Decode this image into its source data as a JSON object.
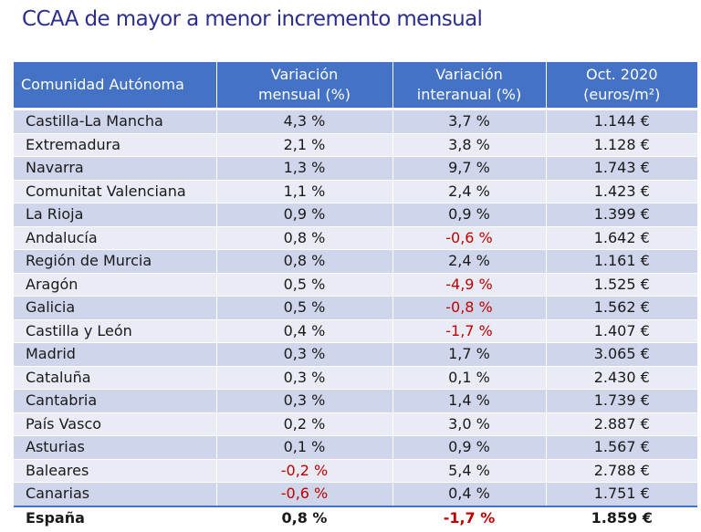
{
  "title": "CCAA de mayor a menor incremento mensual",
  "chart_data": {
    "type": "table",
    "columns": [
      [
        "Comunidad Autónoma"
      ],
      [
        "Variación",
        "mensual (%)"
      ],
      [
        "Variación",
        "interanual (%)"
      ],
      [
        "Oct. 2020",
        "(euros/m²)"
      ]
    ],
    "rows": [
      [
        "Castilla-La Mancha",
        "4,3 %",
        "3,7 %",
        "1.144 €"
      ],
      [
        "Extremadura",
        "2,1 %",
        "3,8 %",
        "1.128 €"
      ],
      [
        "Navarra",
        "1,3 %",
        "9,7 %",
        "1.743 €"
      ],
      [
        "Comunitat Valenciana",
        "1,1 %",
        "2,4 %",
        "1.423 €"
      ],
      [
        "La Rioja",
        "0,9 %",
        "0,9 %",
        "1.399 €"
      ],
      [
        "Andalucía",
        "0,8 %",
        "-0,6 %",
        "1.642 €"
      ],
      [
        "Región de Murcia",
        "0,8 %",
        "2,4 %",
        "1.161 €"
      ],
      [
        "Aragón",
        "0,5 %",
        "-4,9 %",
        "1.525 €"
      ],
      [
        "Galicia",
        "0,5 %",
        "-0,8 %",
        "1.562 €"
      ],
      [
        "Castilla y León",
        "0,4 %",
        "-1,7 %",
        "1.407 €"
      ],
      [
        "Madrid",
        "0,3 %",
        "1,7 %",
        "3.065 €"
      ],
      [
        "Cataluña",
        "0,3 %",
        "0,1 %",
        "2.430 €"
      ],
      [
        "Cantabria",
        "0,3 %",
        "1,4 %",
        "1.739 €"
      ],
      [
        "País Vasco",
        "0,2 %",
        "3,0 %",
        "2.887 €"
      ],
      [
        "Asturias",
        "0,1 %",
        "0,9 %",
        "1.567 €"
      ],
      [
        "Baleares",
        "-0,2 %",
        "5,4 %",
        "2.788 €"
      ],
      [
        "Canarias",
        "-0,6 %",
        "0,4 %",
        "1.751 €"
      ]
    ],
    "total": [
      "España",
      "0,8 %",
      "-1,7 %",
      "1.859 €"
    ],
    "colors": {
      "header": "#4472c4",
      "row_dark": "#cfd5ea",
      "row_light": "#e9ebf5",
      "negative": "#c00000",
      "title": "#2b2e8c"
    }
  }
}
